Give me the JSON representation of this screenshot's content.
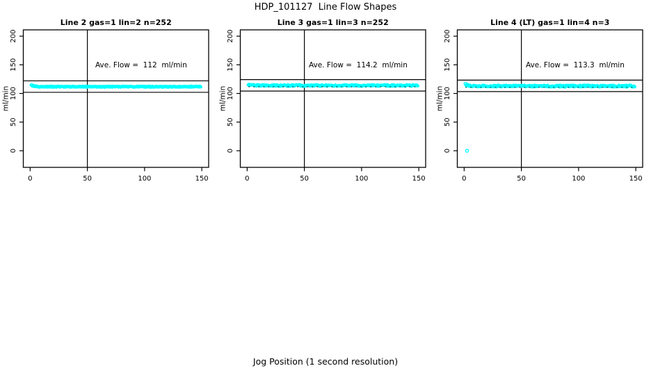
{
  "figure": {
    "main_title": "HDP_101127  Line Flow Shapes",
    "outer_xlabel": "Jog Position (1 second resolution)",
    "background": "#FFFFFF",
    "foreground": "#000000"
  },
  "chart_data": {
    "type": "scatter",
    "layout": "1 row x 3 panels",
    "xlabel": "Jog Position (1 second resolution)",
    "ylabel": "ml/min",
    "x_ticks": [
      0,
      50,
      100,
      150
    ],
    "y_ticks": [
      0,
      50,
      100,
      150,
      200
    ],
    "xlim": [
      -6,
      156
    ],
    "ylim": [
      -29,
      211
    ],
    "grid": false,
    "point_color": "#00FFFF",
    "dark_trace_color": "#0E5A5A",
    "vline_x": 50,
    "hline_offset_from_mean": 10,
    "panels": [
      {
        "key": "line-2",
        "title": "Line 2 gas=1 lin=2 n=252",
        "annotation": "Ave. Flow =  112  ml/min",
        "ave_flow_ml_min": 112,
        "n": 252,
        "hlines": [
          102,
          122
        ],
        "x_range": [
          1,
          149
        ],
        "steady_flow": 111.8,
        "startup_peak": 116.5,
        "noise": 0.8,
        "dark_trace": false,
        "outliers": []
      },
      {
        "key": "line-3",
        "title": "Line 3 gas=1 lin=3 n=252",
        "annotation": "Ave. Flow =  114.2  ml/min",
        "ave_flow_ml_min": 114.2,
        "n": 252,
        "hlines": [
          104.2,
          124.2
        ],
        "x_range": [
          1,
          149
        ],
        "steady_flow": 113.9,
        "startup_peak": 117.5,
        "noise": 1.2,
        "dark_trace": true,
        "outliers": []
      },
      {
        "key": "line-4-lt",
        "title": "Line 4 (LT) gas=1 lin=4 n=3",
        "annotation": "Ave. Flow =  113.3  ml/min",
        "ave_flow_ml_min": 113.3,
        "n": 3,
        "hlines": [
          103.3,
          123.3
        ],
        "x_range": [
          1,
          149
        ],
        "steady_flow": 112.9,
        "startup_peak": 118,
        "noise": 1.4,
        "dark_trace": true,
        "outliers": [
          [
            2.5,
            0
          ]
        ]
      }
    ]
  }
}
